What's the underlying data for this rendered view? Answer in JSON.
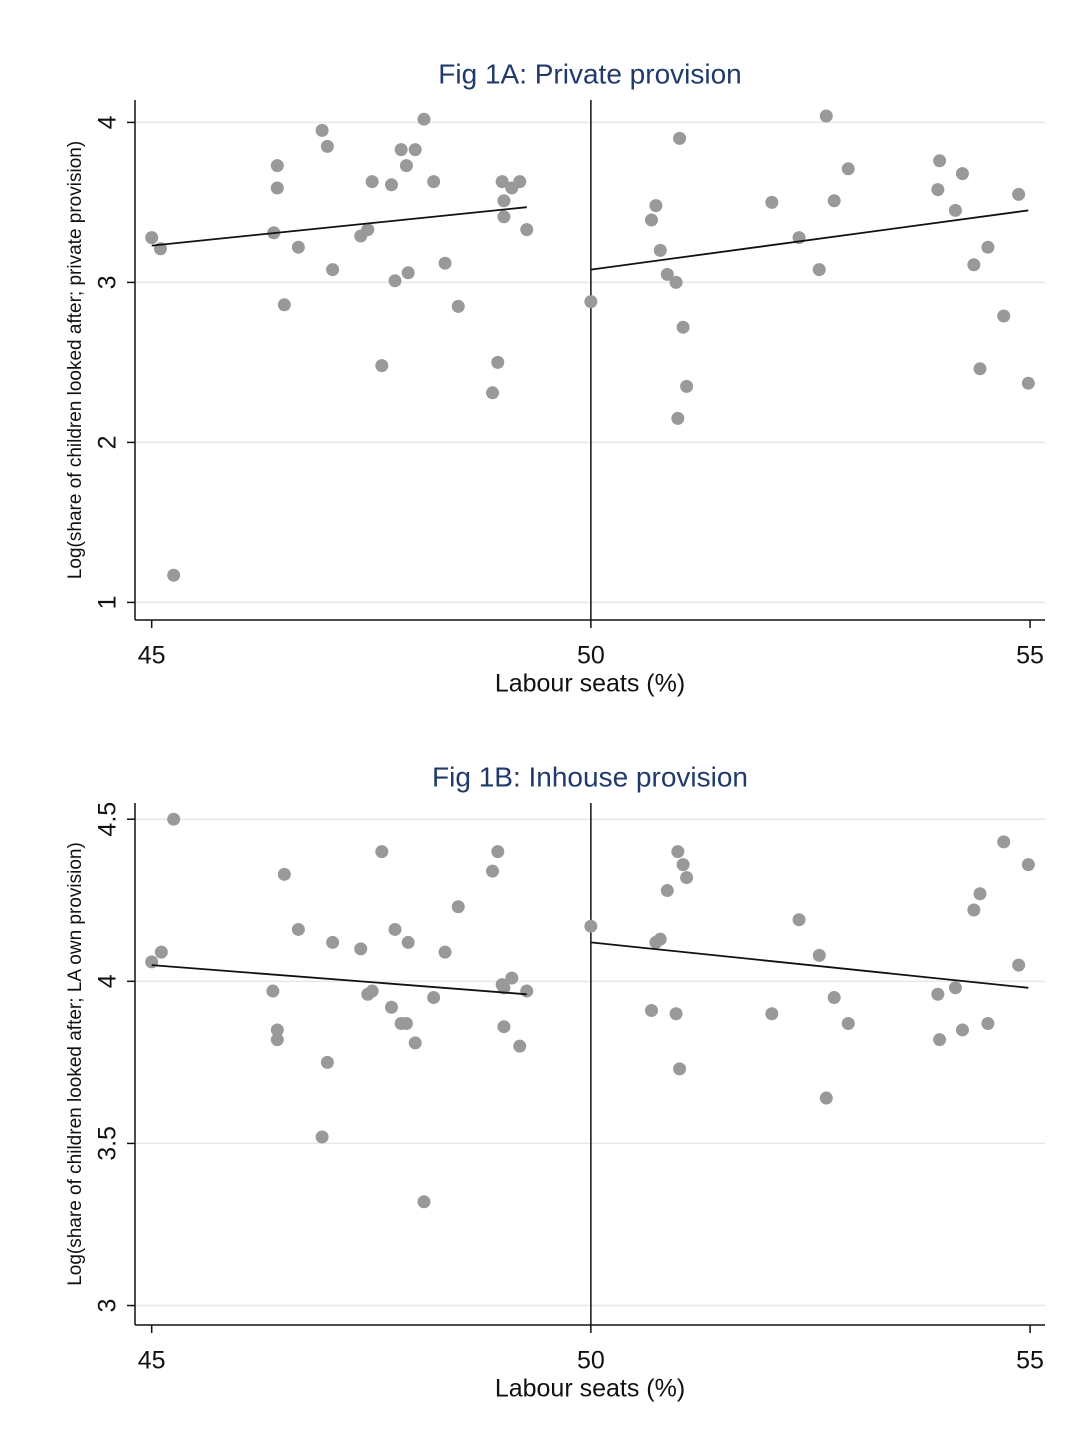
{
  "chart_data": [
    {
      "type": "scatter",
      "title": "Fig 1A: Private provision",
      "x_label": "Labour seats (%)",
      "y_label": "Log(share of children looked after; private provision)",
      "x": [
        45.0,
        45.1,
        45.25,
        46.43,
        46.43,
        46.39,
        46.51,
        46.67,
        46.94,
        47.0,
        47.06,
        47.38,
        47.46,
        47.51,
        47.62,
        47.73,
        47.77,
        47.84,
        47.9,
        47.92,
        48.0,
        48.1,
        48.21,
        48.34,
        48.49,
        48.88,
        48.94,
        48.99,
        49.01,
        49.01,
        49.1,
        49.19,
        49.27,
        50.0,
        50.69,
        50.74,
        50.79,
        50.87,
        50.97,
        50.99,
        51.01,
        51.05,
        51.09,
        52.06,
        52.37,
        52.6,
        52.68,
        52.77,
        52.93,
        53.95,
        53.97,
        54.15,
        54.23,
        54.36,
        54.43,
        54.52,
        54.7,
        54.87,
        54.98
      ],
      "y": [
        3.28,
        3.21,
        1.17,
        3.73,
        3.59,
        3.31,
        2.86,
        3.22,
        3.95,
        3.85,
        3.08,
        3.29,
        3.33,
        3.63,
        2.48,
        3.61,
        3.01,
        3.83,
        3.73,
        3.06,
        3.83,
        4.02,
        3.63,
        3.12,
        2.85,
        2.31,
        2.5,
        3.63,
        3.51,
        3.41,
        3.59,
        3.63,
        3.33,
        2.88,
        3.39,
        3.48,
        3.2,
        3.05,
        3.0,
        2.15,
        3.9,
        2.72,
        2.35,
        3.5,
        3.28,
        3.08,
        4.04,
        3.51,
        3.71,
        3.58,
        3.76,
        3.45,
        3.68,
        3.11,
        2.46,
        3.22,
        2.79,
        3.55,
        2.37
      ],
      "color": "#999999",
      "fit_lines": [
        {
          "x": [
            45.0,
            49.27
          ],
          "y": [
            3.23,
            3.47
          ]
        },
        {
          "x": [
            50.0,
            54.98
          ],
          "y": [
            3.08,
            3.45
          ]
        }
      ],
      "line_color": "#111111",
      "reference_x": 50,
      "xlim": [
        44.81,
        55.17
      ],
      "xticks": [
        45,
        50,
        55
      ],
      "ylim": [
        0.89,
        4.14
      ],
      "yticks": [
        1,
        2,
        3,
        4
      ],
      "grid": true
    },
    {
      "type": "scatter",
      "title": "Fig 1B: Inhouse provision",
      "x_label": "Labour seats (%)",
      "y_label": "Log(share of children looked after; LA own provision)",
      "x": [
        45.0,
        45.11,
        45.25,
        46.38,
        46.43,
        46.43,
        46.51,
        46.67,
        46.94,
        47.0,
        47.06,
        47.38,
        47.46,
        47.51,
        47.62,
        47.73,
        47.77,
        47.84,
        47.9,
        47.92,
        48.0,
        48.1,
        48.21,
        48.34,
        48.49,
        48.88,
        48.94,
        48.99,
        49.01,
        49.01,
        49.1,
        49.19,
        49.27,
        50.0,
        50.69,
        50.74,
        50.79,
        50.87,
        50.97,
        50.99,
        51.01,
        51.05,
        51.09,
        52.06,
        52.37,
        52.6,
        52.68,
        52.77,
        52.93,
        53.95,
        53.97,
        54.15,
        54.23,
        54.36,
        54.43,
        54.52,
        54.7,
        54.87,
        54.98
      ],
      "y": [
        4.06,
        4.09,
        4.5,
        3.97,
        3.85,
        3.82,
        4.33,
        4.16,
        3.52,
        3.75,
        4.12,
        4.1,
        3.96,
        3.97,
        4.4,
        3.92,
        4.16,
        3.87,
        3.87,
        4.12,
        3.81,
        3.32,
        3.95,
        4.09,
        4.23,
        4.34,
        4.4,
        3.99,
        3.98,
        3.86,
        4.01,
        3.8,
        3.97,
        4.17,
        3.91,
        4.12,
        4.13,
        4.28,
        3.9,
        4.4,
        3.73,
        4.36,
        4.32,
        3.9,
        4.19,
        4.08,
        3.64,
        3.95,
        3.87,
        3.96,
        3.82,
        3.98,
        3.85,
        4.22,
        4.27,
        3.87,
        4.43,
        4.05,
        4.36
      ],
      "color": "#999999",
      "fit_lines": [
        {
          "x": [
            45.0,
            49.27
          ],
          "y": [
            4.05,
            3.96
          ]
        },
        {
          "x": [
            50.0,
            54.98
          ],
          "y": [
            4.12,
            3.98
          ]
        }
      ],
      "line_color": "#111111",
      "reference_x": 50,
      "xlim": [
        44.81,
        55.17
      ],
      "xticks": [
        45,
        50,
        55
      ],
      "ylim": [
        2.94,
        4.55
      ],
      "yticks": [
        3,
        3.5,
        4,
        4.5
      ],
      "grid": true
    }
  ]
}
